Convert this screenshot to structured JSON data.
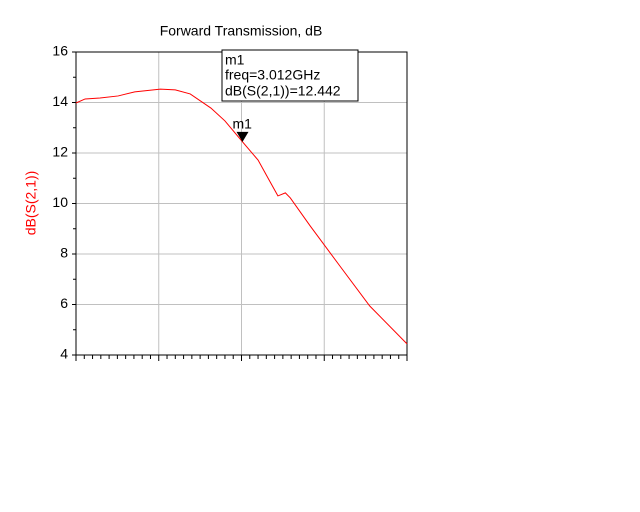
{
  "chart_data": {
    "type": "line",
    "title": "Forward Transmission, dB",
    "ylabel": "dB(S(2,1))",
    "x": [
      1.0,
      1.11,
      1.29,
      1.51,
      1.71,
      2.02,
      2.2,
      2.38,
      2.63,
      2.8,
      3.012,
      3.2,
      3.34,
      3.44,
      3.53,
      3.59,
      3.83,
      4.19,
      4.55,
      5.0
    ],
    "series": [
      {
        "name": "dB(S(2,1))",
        "color": "#ff0000",
        "values": [
          13.98,
          14.14,
          14.18,
          14.26,
          14.42,
          14.53,
          14.5,
          14.34,
          13.78,
          13.27,
          12.442,
          11.72,
          10.89,
          10.3,
          10.42,
          10.22,
          9.11,
          7.52,
          5.94,
          4.44
        ]
      }
    ],
    "xlim": [
      1,
      5
    ],
    "ylim": [
      4,
      16
    ],
    "yticks": [
      4,
      6,
      8,
      10,
      12,
      14,
      16
    ],
    "grid": true,
    "marker": {
      "name": "m1",
      "x": 3.012,
      "y": 12.442,
      "x_label": "freq=3.012GHz",
      "y_label": "dB(S(2,1))=12.442"
    }
  }
}
